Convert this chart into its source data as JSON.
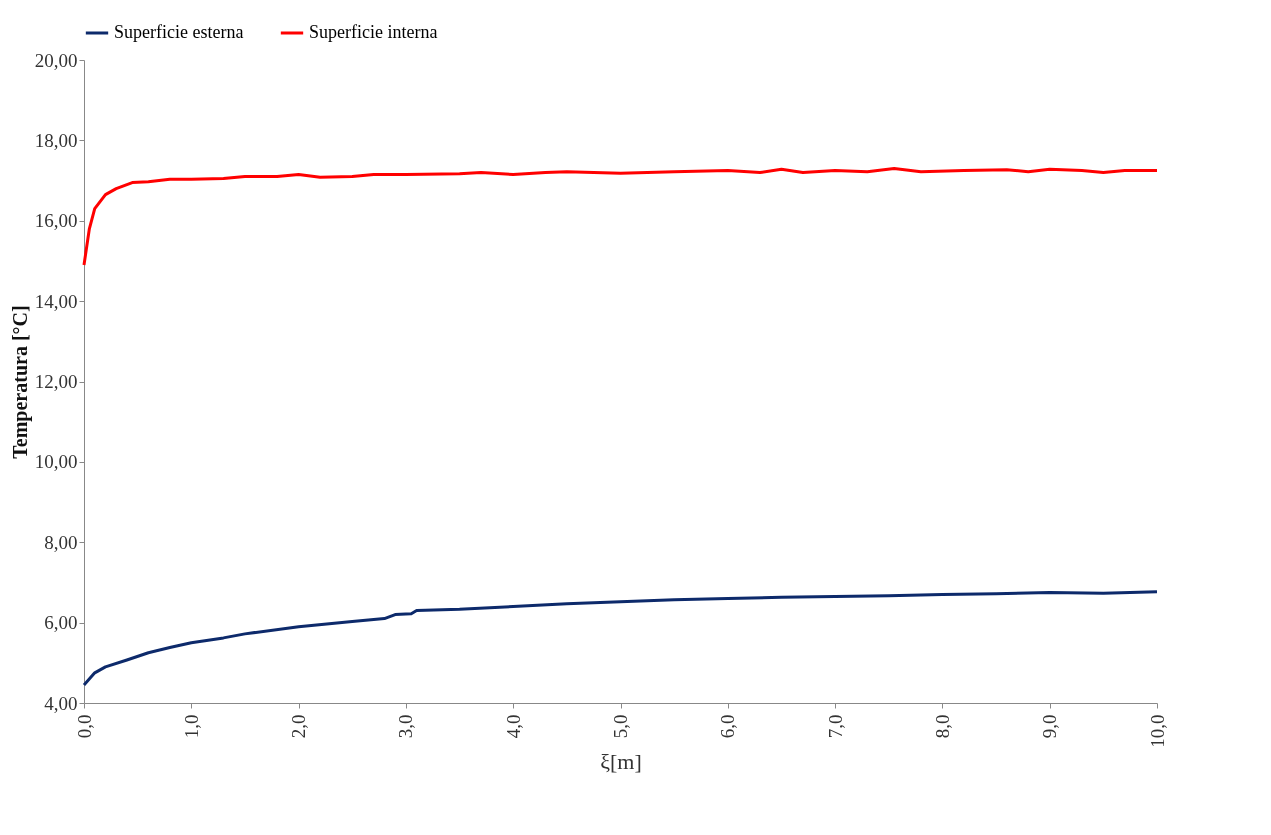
{
  "chart_data": {
    "type": "line",
    "xlabel": "ξ[m]",
    "ylabel": "Temperatura [°C]",
    "legend": "top",
    "grid": false,
    "marker": "none",
    "line_style": "solid",
    "xlim": [
      0,
      10
    ],
    "ylim": [
      4,
      20
    ],
    "xticks": [
      {
        "value": 0,
        "label": "0,0"
      },
      {
        "value": 1,
        "label": "1,0"
      },
      {
        "value": 2,
        "label": "2,0"
      },
      {
        "value": 3,
        "label": "3,0"
      },
      {
        "value": 4,
        "label": "4,0"
      },
      {
        "value": 5,
        "label": "5,0"
      },
      {
        "value": 6,
        "label": "6,0"
      },
      {
        "value": 7,
        "label": "7,0"
      },
      {
        "value": 8,
        "label": "8,0"
      },
      {
        "value": 9,
        "label": "9,0"
      },
      {
        "value": 10,
        "label": "10,0"
      }
    ],
    "yticks": [
      {
        "value": 4,
        "label": "4,00"
      },
      {
        "value": 6,
        "label": "6,00"
      },
      {
        "value": 8,
        "label": "8,00"
      },
      {
        "value": 10,
        "label": "10,00"
      },
      {
        "value": 12,
        "label": "12,00"
      },
      {
        "value": 14,
        "label": "14,00"
      },
      {
        "value": 16,
        "label": "16,00"
      },
      {
        "value": 18,
        "label": "18,00"
      },
      {
        "value": 20,
        "label": "20,00"
      }
    ],
    "series": [
      {
        "name": "Superficie esterna",
        "color": "#0d2a6b",
        "x": [
          0,
          0.1,
          0.2,
          0.4,
          0.6,
          0.8,
          1.0,
          1.3,
          1.5,
          2.0,
          2.5,
          2.8,
          2.9,
          3.05,
          3.1,
          3.5,
          4.0,
          4.5,
          5.0,
          5.5,
          6.0,
          6.5,
          7.0,
          7.5,
          8.0,
          8.5,
          9.0,
          9.5,
          10.0
        ],
        "values": [
          4.45,
          4.75,
          4.9,
          5.07,
          5.25,
          5.38,
          5.5,
          5.62,
          5.72,
          5.9,
          6.03,
          6.1,
          6.2,
          6.22,
          6.3,
          6.33,
          6.4,
          6.47,
          6.52,
          6.57,
          6.6,
          6.63,
          6.65,
          6.67,
          6.7,
          6.72,
          6.75,
          6.73,
          6.77
        ]
      },
      {
        "name": "Superficie interna",
        "color": "#ff0000",
        "x": [
          0,
          0.05,
          0.1,
          0.2,
          0.3,
          0.45,
          0.6,
          0.8,
          1.0,
          1.3,
          1.5,
          1.8,
          2.0,
          2.2,
          2.5,
          2.7,
          3.0,
          3.5,
          3.7,
          4.0,
          4.3,
          4.5,
          5.0,
          5.5,
          6.0,
          6.3,
          6.5,
          6.7,
          7.0,
          7.3,
          7.55,
          7.8,
          8.2,
          8.6,
          8.8,
          9.0,
          9.3,
          9.5,
          9.7,
          10.0
        ],
        "values": [
          14.9,
          15.8,
          16.3,
          16.65,
          16.8,
          16.95,
          16.97,
          17.03,
          17.03,
          17.05,
          17.1,
          17.1,
          17.15,
          17.08,
          17.1,
          17.15,
          17.15,
          17.17,
          17.2,
          17.15,
          17.2,
          17.22,
          17.18,
          17.22,
          17.25,
          17.2,
          17.28,
          17.2,
          17.25,
          17.22,
          17.3,
          17.22,
          17.25,
          17.27,
          17.22,
          17.28,
          17.25,
          17.2,
          17.25,
          17.25
        ]
      }
    ]
  }
}
